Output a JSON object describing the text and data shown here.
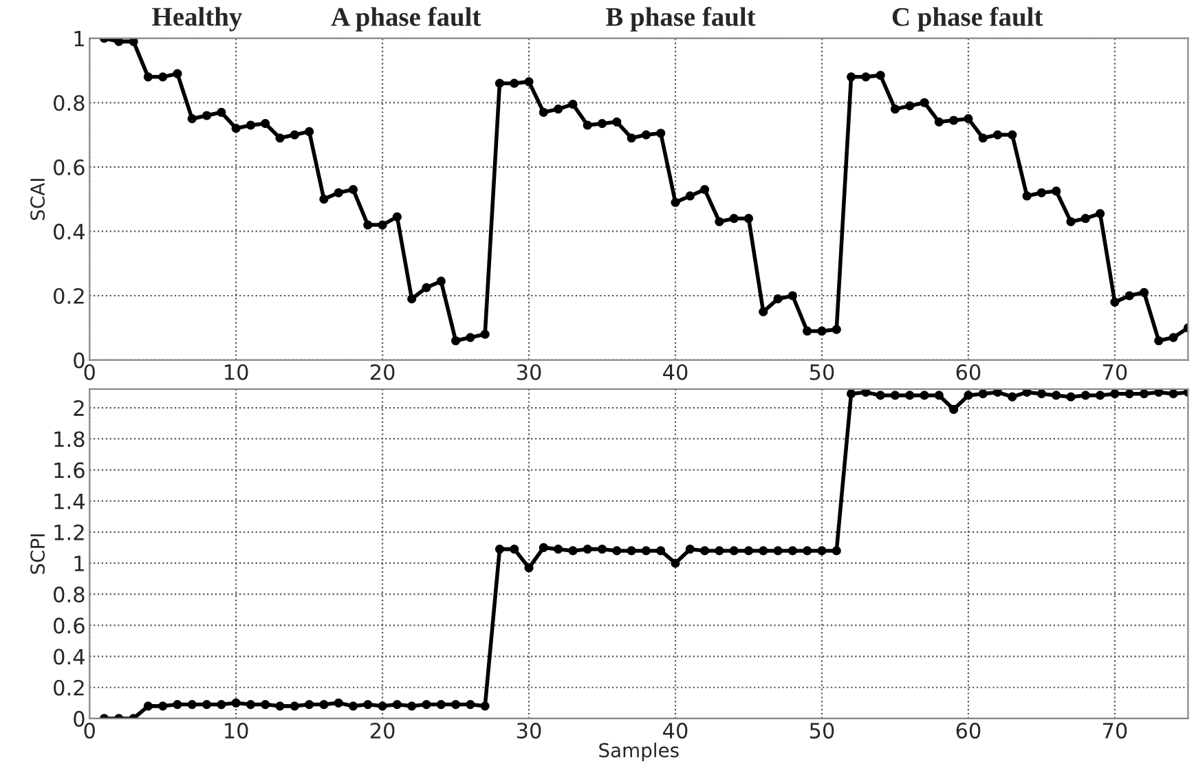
{
  "chart_data": [
    {
      "type": "line",
      "ylabel": "SCAI",
      "annotations": [
        "Healthy",
        "A phase fault",
        "B phase fault",
        "C phase fault"
      ],
      "x": [
        1,
        2,
        3,
        4,
        5,
        6,
        7,
        8,
        9,
        10,
        11,
        12,
        13,
        14,
        15,
        16,
        17,
        18,
        19,
        20,
        21,
        22,
        23,
        24,
        25,
        26,
        27,
        28,
        29,
        30,
        31,
        32,
        33,
        34,
        35,
        36,
        37,
        38,
        39,
        40,
        41,
        42,
        43,
        44,
        45,
        46,
        47,
        48,
        49,
        50,
        51,
        52,
        53,
        54,
        55,
        56,
        57,
        58,
        59,
        60,
        61,
        62,
        63,
        64,
        65,
        66,
        67,
        68,
        69,
        70,
        71,
        72,
        73,
        74,
        75
      ],
      "series": [
        {
          "color": "#000000",
          "values": [
            1.0,
            0.99,
            0.99,
            0.88,
            0.88,
            0.89,
            0.75,
            0.76,
            0.77,
            0.72,
            0.73,
            0.735,
            0.69,
            0.7,
            0.71,
            0.5,
            0.52,
            0.53,
            0.42,
            0.42,
            0.445,
            0.19,
            0.225,
            0.245,
            0.06,
            0.07,
            0.08,
            0.86,
            0.86,
            0.865,
            0.77,
            0.78,
            0.795,
            0.73,
            0.735,
            0.74,
            0.69,
            0.7,
            0.705,
            0.49,
            0.51,
            0.53,
            0.43,
            0.44,
            0.44,
            0.15,
            0.19,
            0.2,
            0.09,
            0.09,
            0.095,
            0.88,
            0.88,
            0.885,
            0.78,
            0.79,
            0.8,
            0.74,
            0.745,
            0.75,
            0.69,
            0.7,
            0.7,
            0.51,
            0.52,
            0.525,
            0.43,
            0.44,
            0.455,
            0.18,
            0.2,
            0.21,
            0.06,
            0.07,
            0.1
          ]
        }
      ],
      "xlim": [
        0,
        75
      ],
      "xticks": [
        0,
        10,
        20,
        30,
        40,
        50,
        60,
        70
      ],
      "ylim": [
        0,
        1
      ],
      "yticks": [
        0,
        0.2,
        0.4,
        0.6,
        0.8,
        1
      ],
      "grid": true,
      "marker": "circle",
      "line_style": "solid"
    },
    {
      "type": "line",
      "xlabel": "Samples",
      "ylabel": "SCPI",
      "x": [
        1,
        2,
        3,
        4,
        5,
        6,
        7,
        8,
        9,
        10,
        11,
        12,
        13,
        14,
        15,
        16,
        17,
        18,
        19,
        20,
        21,
        22,
        23,
        24,
        25,
        26,
        27,
        28,
        29,
        30,
        31,
        32,
        33,
        34,
        35,
        36,
        37,
        38,
        39,
        40,
        41,
        42,
        43,
        44,
        45,
        46,
        47,
        48,
        49,
        50,
        51,
        52,
        53,
        54,
        55,
        56,
        57,
        58,
        59,
        60,
        61,
        62,
        63,
        64,
        65,
        66,
        67,
        68,
        69,
        70,
        71,
        72,
        73,
        74,
        75
      ],
      "series": [
        {
          "color": "#000000",
          "values": [
            0,
            0,
            0,
            0.08,
            0.08,
            0.09,
            0.09,
            0.09,
            0.09,
            0.1,
            0.09,
            0.09,
            0.08,
            0.08,
            0.09,
            0.09,
            0.1,
            0.08,
            0.09,
            0.08,
            0.09,
            0.08,
            0.09,
            0.09,
            0.09,
            0.09,
            0.08,
            1.09,
            1.09,
            0.97,
            1.1,
            1.09,
            1.08,
            1.09,
            1.09,
            1.08,
            1.08,
            1.08,
            1.08,
            1.0,
            1.09,
            1.08,
            1.08,
            1.08,
            1.08,
            1.08,
            1.08,
            1.08,
            1.08,
            1.08,
            1.08,
            2.09,
            2.1,
            2.08,
            2.08,
            2.08,
            2.08,
            2.08,
            1.99,
            2.08,
            2.09,
            2.1,
            2.07,
            2.1,
            2.09,
            2.08,
            2.07,
            2.08,
            2.08,
            2.09,
            2.09,
            2.09,
            2.1,
            2.09,
            2.1
          ]
        }
      ],
      "xlim": [
        0,
        75
      ],
      "xticks": [
        0,
        10,
        20,
        30,
        40,
        50,
        60,
        70
      ],
      "ylim": [
        0,
        2.12
      ],
      "yticks": [
        0,
        0.2,
        0.4,
        0.6,
        0.8,
        1,
        1.2,
        1.4,
        1.6,
        1.8,
        2
      ],
      "grid": true,
      "marker": "circle",
      "line_style": "solid"
    }
  ]
}
